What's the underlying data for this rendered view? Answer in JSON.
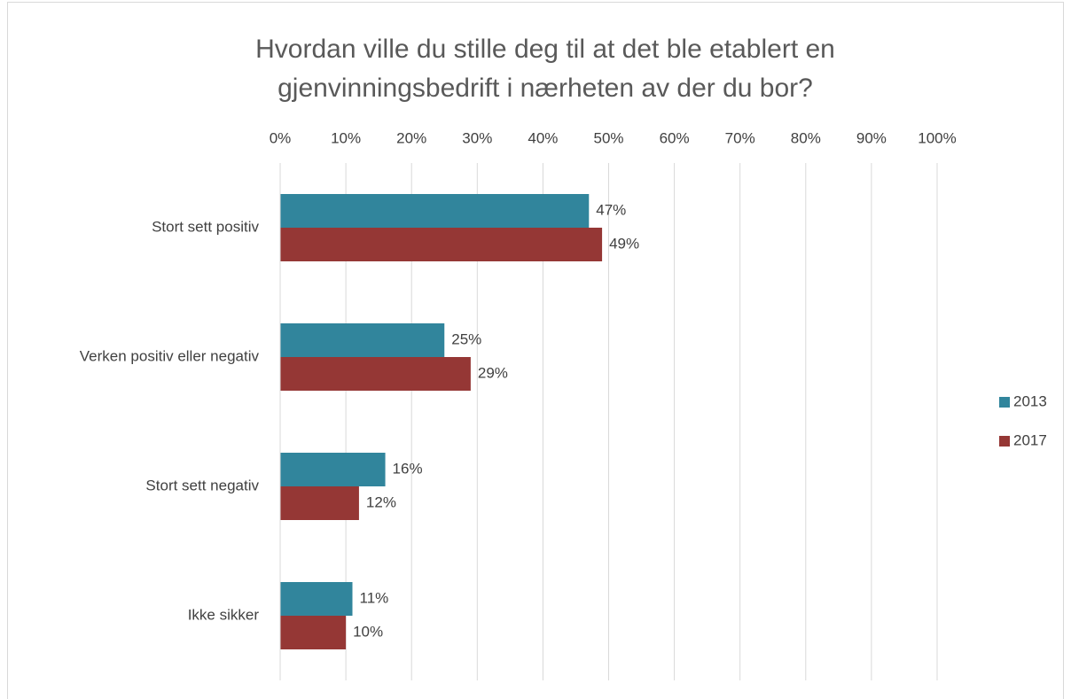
{
  "chart_data": {
    "type": "hbar",
    "title": [
      "Hvordan ville du stille deg til at det ble etablert en",
      "gjenvinningsbedrift i nærheten av der du bor?"
    ],
    "categories": [
      "Stort sett positiv",
      "Verken positiv eller negativ",
      "Stort sett negativ",
      "Ikke sikker"
    ],
    "series": [
      {
        "name": "2013",
        "color": "#31859c",
        "values": [
          47,
          25,
          16,
          11
        ],
        "value_labels": [
          "47%",
          "25%",
          "16%",
          "11%"
        ]
      },
      {
        "name": "2017",
        "color": "#953735",
        "values": [
          49,
          29,
          12,
          10
        ],
        "value_labels": [
          "49%",
          "29%",
          "12%",
          "10%"
        ]
      }
    ],
    "xlim": [
      0,
      100
    ],
    "xticks": [
      {
        "value": 0,
        "label": "0%"
      },
      {
        "value": 10,
        "label": "10%"
      },
      {
        "value": 20,
        "label": "20%"
      },
      {
        "value": 30,
        "label": "30%"
      },
      {
        "value": 40,
        "label": "40%"
      },
      {
        "value": 50,
        "label": "50%"
      },
      {
        "value": 60,
        "label": "60%"
      },
      {
        "value": 70,
        "label": "70%"
      },
      {
        "value": 80,
        "label": "80%"
      },
      {
        "value": 90,
        "label": "90%"
      },
      {
        "value": 100,
        "label": "100%"
      }
    ],
    "grid": true,
    "legend": "right"
  }
}
